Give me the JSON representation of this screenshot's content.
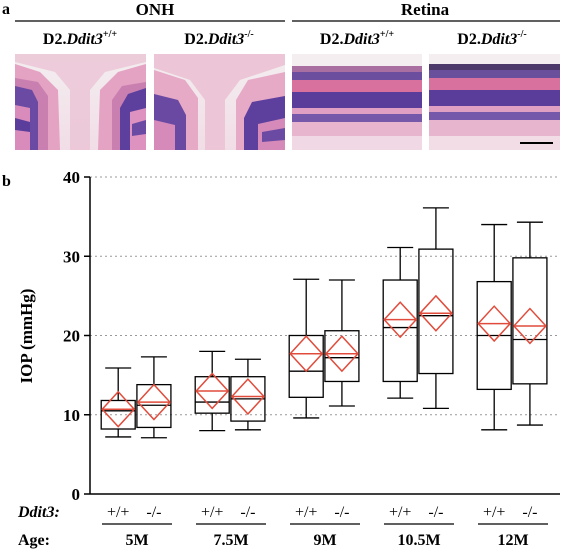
{
  "panel_a": {
    "label": "a",
    "groups": [
      {
        "title": "ONH",
        "images": [
          {
            "prefix": "D2.",
            "gene": "Ddit3",
            "sup": "+/+"
          },
          {
            "prefix": "D2.",
            "gene": "Ddit3",
            "sup": "-/-"
          }
        ]
      },
      {
        "title": "Retina",
        "images": [
          {
            "prefix": "D2.",
            "gene": "Ddit3",
            "sup": "+/+"
          },
          {
            "prefix": "D2.",
            "gene": "Ddit3",
            "sup": "-/-"
          }
        ]
      }
    ],
    "colors": {
      "tissue_pink": "#e6a9c6",
      "nuclear_purple": "#5d3f9e",
      "background": "#f2ecec"
    }
  },
  "panel_b": {
    "label": "b"
  },
  "chart_data": {
    "type": "box",
    "ylabel": "IOP (mmHg)",
    "ylim": [
      0,
      40
    ],
    "yticks": [
      0,
      10,
      20,
      30,
      40
    ],
    "grid": "horizontal dotted at 10, 20, 30, 40",
    "genotype_row_label": "Ddit3:",
    "age_row_label": "Age:",
    "groups": [
      {
        "age": "5M",
        "boxes": [
          {
            "genotype": "+/+",
            "min": 7.2,
            "q1": 8.2,
            "median": 10.5,
            "q3": 11.8,
            "max": 15.9,
            "mean": 10.7
          },
          {
            "genotype": "-/-",
            "min": 7.1,
            "q1": 8.4,
            "median": 11.2,
            "q3": 13.8,
            "max": 17.3,
            "mean": 11.6
          }
        ]
      },
      {
        "age": "7.5M",
        "boxes": [
          {
            "genotype": "+/+",
            "min": 8.0,
            "q1": 10.2,
            "median": 11.6,
            "q3": 14.8,
            "max": 18.0,
            "mean": 13.0
          },
          {
            "genotype": "-/-",
            "min": 8.1,
            "q1": 9.2,
            "median": 12.0,
            "q3": 14.8,
            "max": 17.0,
            "mean": 12.3
          }
        ]
      },
      {
        "age": "9M",
        "boxes": [
          {
            "genotype": "+/+",
            "min": 9.6,
            "q1": 12.2,
            "median": 15.5,
            "q3": 20.0,
            "max": 27.1,
            "mean": 17.7
          },
          {
            "genotype": "-/-",
            "min": 11.1,
            "q1": 14.2,
            "median": 17.2,
            "q3": 20.6,
            "max": 27.0,
            "mean": 17.7
          }
        ]
      },
      {
        "age": "10.5M",
        "boxes": [
          {
            "genotype": "+/+",
            "min": 12.1,
            "q1": 14.2,
            "median": 21.0,
            "q3": 27.0,
            "max": 31.1,
            "mean": 22.0
          },
          {
            "genotype": "-/-",
            "min": 10.8,
            "q1": 15.2,
            "median": 22.5,
            "q3": 30.9,
            "max": 36.1,
            "mean": 22.8
          }
        ]
      },
      {
        "age": "12M",
        "boxes": [
          {
            "genotype": "+/+",
            "min": 8.1,
            "q1": 13.2,
            "median": 20.0,
            "q3": 26.8,
            "max": 34.0,
            "mean": 21.5
          },
          {
            "genotype": "-/-",
            "min": 8.7,
            "q1": 13.9,
            "median": 19.5,
            "q3": 29.8,
            "max": 34.3,
            "mean": 21.2
          }
        ]
      }
    ],
    "colors": {
      "box": "#000000",
      "mean_diamond": "#e14b3b",
      "grid": "#999999"
    }
  }
}
